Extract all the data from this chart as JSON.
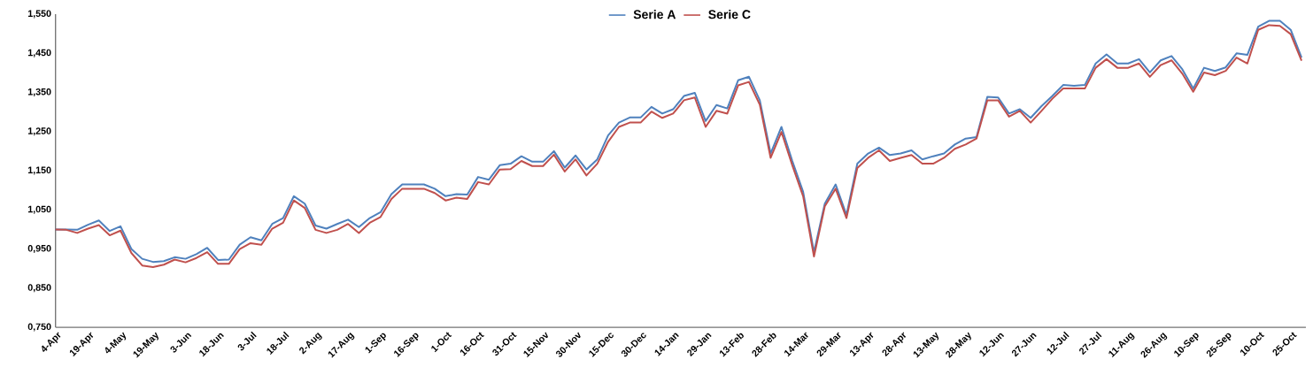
{
  "chart_data": {
    "type": "line",
    "categories": [
      "4-Apr",
      null,
      null,
      "19-Apr",
      null,
      null,
      "4-May",
      null,
      null,
      "19-May",
      null,
      null,
      "3-Jun",
      null,
      null,
      "18-Jun",
      null,
      null,
      "3-Jul",
      null,
      null,
      "18-Jul",
      null,
      null,
      "2-Aug",
      null,
      null,
      "17-Aug",
      null,
      null,
      "1-Sep",
      null,
      null,
      "16-Sep",
      null,
      null,
      "1-Oct",
      null,
      null,
      "16-Oct",
      null,
      null,
      "31-Oct",
      null,
      null,
      "15-Nov",
      null,
      null,
      "30-Nov",
      null,
      null,
      "15-Dec",
      null,
      null,
      "30-Dec",
      null,
      null,
      "14-Jan",
      null,
      null,
      "29-Jan",
      null,
      null,
      "13-Feb",
      null,
      null,
      "28-Feb",
      null,
      null,
      "14-Mar",
      null,
      null,
      "29-Mar",
      null,
      null,
      "13-Apr",
      null,
      null,
      "28-Apr",
      null,
      null,
      "13-May",
      null,
      null,
      "28-May",
      null,
      null,
      "12-Jun",
      null,
      null,
      "27-Jun",
      null,
      null,
      "12-Jul",
      null,
      null,
      "27-Jul",
      null,
      null,
      "11-Aug",
      null,
      null,
      "26-Aug",
      null,
      null,
      "10-Sep",
      null,
      null,
      "25-Sep",
      null,
      null,
      "10-Oct",
      null,
      null,
      "25-Oct",
      null
    ],
    "series": [
      {
        "name": "Serie A",
        "color": "#4f81bd",
        "values": [
          1.0,
          1.0,
          0.999,
          1.012,
          1.023,
          0.996,
          1.008,
          0.95,
          0.925,
          0.917,
          0.919,
          0.929,
          0.925,
          0.937,
          0.953,
          0.922,
          0.923,
          0.961,
          0.98,
          0.972,
          1.014,
          1.029,
          1.085,
          1.066,
          1.01,
          1.002,
          1.014,
          1.025,
          1.006,
          1.029,
          1.044,
          1.09,
          1.115,
          1.115,
          1.115,
          1.104,
          1.085,
          1.09,
          1.089,
          1.134,
          1.127,
          1.164,
          1.168,
          1.187,
          1.173,
          1.173,
          1.2,
          1.158,
          1.189,
          1.153,
          1.179,
          1.24,
          1.273,
          1.286,
          1.286,
          1.313,
          1.296,
          1.307,
          1.341,
          1.349,
          1.277,
          1.318,
          1.309,
          1.381,
          1.39,
          1.33,
          1.194,
          1.262,
          1.175,
          1.096,
          0.942,
          1.066,
          1.115,
          1.037,
          1.168,
          1.194,
          1.209,
          1.19,
          1.194,
          1.202,
          1.179,
          1.187,
          1.194,
          1.217,
          1.232,
          1.236,
          1.339,
          1.337,
          1.296,
          1.307,
          1.285,
          1.315,
          1.341,
          1.369,
          1.367,
          1.369,
          1.424,
          1.447,
          1.424,
          1.424,
          1.435,
          1.401,
          1.432,
          1.443,
          1.409,
          1.36,
          1.413,
          1.405,
          1.414,
          1.45,
          1.446,
          1.518,
          1.533,
          1.533,
          1.51,
          1.439
        ]
      },
      {
        "name": "Serie C",
        "color": "#c0504d",
        "values": [
          1.0,
          0.999,
          0.991,
          1.002,
          1.011,
          0.985,
          0.997,
          0.94,
          0.908,
          0.904,
          0.91,
          0.923,
          0.916,
          0.927,
          0.942,
          0.912,
          0.912,
          0.95,
          0.965,
          0.961,
          1.002,
          1.017,
          1.074,
          1.055,
          0.999,
          0.991,
          0.999,
          1.014,
          0.991,
          1.017,
          1.032,
          1.078,
          1.104,
          1.104,
          1.104,
          1.093,
          1.074,
          1.081,
          1.078,
          1.121,
          1.115,
          1.153,
          1.154,
          1.175,
          1.162,
          1.162,
          1.191,
          1.148,
          1.179,
          1.138,
          1.168,
          1.224,
          1.262,
          1.273,
          1.273,
          1.301,
          1.285,
          1.296,
          1.33,
          1.337,
          1.262,
          1.303,
          1.296,
          1.368,
          1.377,
          1.319,
          1.183,
          1.249,
          1.164,
          1.085,
          0.931,
          1.059,
          1.104,
          1.029,
          1.157,
          1.183,
          1.202,
          1.175,
          1.183,
          1.19,
          1.168,
          1.168,
          1.183,
          1.206,
          1.217,
          1.232,
          1.33,
          1.33,
          1.288,
          1.303,
          1.273,
          1.303,
          1.334,
          1.36,
          1.36,
          1.36,
          1.413,
          1.435,
          1.413,
          1.413,
          1.424,
          1.39,
          1.42,
          1.432,
          1.398,
          1.352,
          1.401,
          1.394,
          1.405,
          1.439,
          1.424,
          1.51,
          1.522,
          1.52,
          1.499,
          1.431
        ]
      }
    ],
    "ylim": [
      0.75,
      1.55
    ],
    "yticks": [
      {
        "value": 0.75,
        "label": "0,750"
      },
      {
        "value": 0.85,
        "label": "0,850"
      },
      {
        "value": 0.95,
        "label": "0,950"
      },
      {
        "value": 1.05,
        "label": "1,050"
      },
      {
        "value": 1.15,
        "label": "1,150"
      },
      {
        "value": 1.25,
        "label": "1,250"
      },
      {
        "value": 1.35,
        "label": "1,350"
      },
      {
        "value": 1.45,
        "label": "1,450"
      },
      {
        "value": 1.55,
        "label": "1,550"
      }
    ],
    "legend": "top"
  }
}
